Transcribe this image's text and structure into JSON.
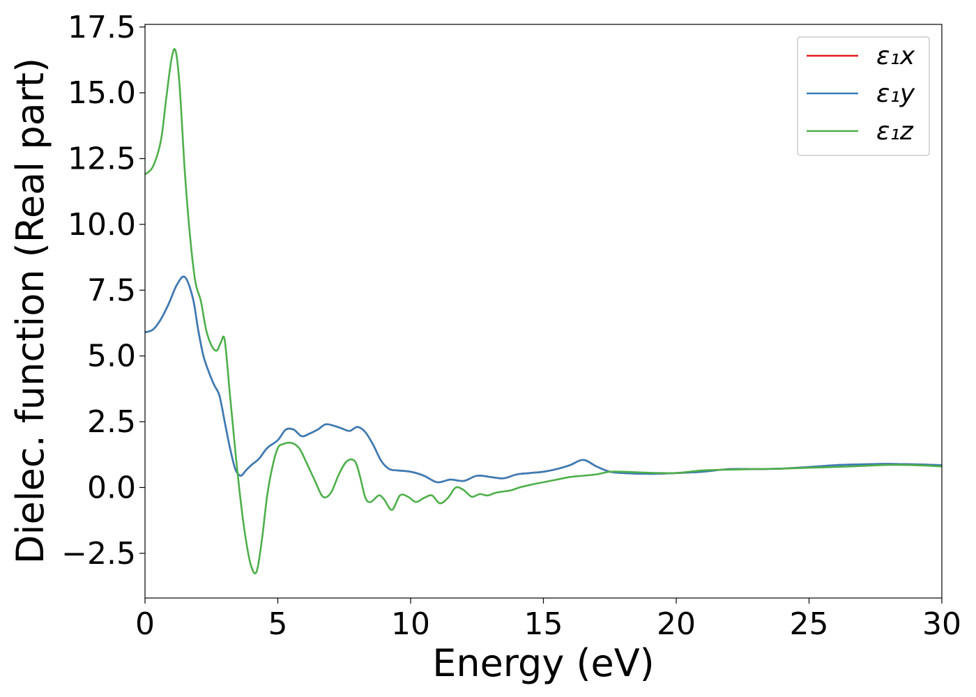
{
  "chart_data": {
    "type": "line",
    "title": "",
    "xlabel": "Energy (eV)",
    "ylabel": "Dielec. function (Real part)",
    "xlim": [
      0,
      30
    ],
    "ylim": [
      -4.2,
      17.6
    ],
    "xticks": [
      0,
      5,
      10,
      15,
      20,
      25,
      30
    ],
    "xtick_labels": [
      "0",
      "5",
      "10",
      "15",
      "20",
      "25",
      "30"
    ],
    "yticks": [
      -2.5,
      0.0,
      2.5,
      5.0,
      7.5,
      10.0,
      12.5,
      15.0,
      17.5
    ],
    "ytick_labels": [
      "−2.5",
      "0.0",
      "2.5",
      "5.0",
      "7.5",
      "10.0",
      "12.5",
      "15.0",
      "17.5"
    ],
    "grid": false,
    "legend_position": "top-right",
    "series": [
      {
        "name": "ε₁x",
        "color": "#e41a1c",
        "x": [
          0,
          0.3,
          0.6,
          0.9,
          1.2,
          1.5,
          1.8,
          2.0,
          2.2,
          2.4,
          2.6,
          2.8,
          3.0,
          3.2,
          3.4,
          3.6,
          3.8,
          4.0,
          4.3,
          4.6,
          5.0,
          5.3,
          5.6,
          5.9,
          6.2,
          6.5,
          6.8,
          7.1,
          7.4,
          7.7,
          8.0,
          8.3,
          8.6,
          8.9,
          9.2,
          9.5,
          10.0,
          10.5,
          11.0,
          11.5,
          12.0,
          12.5,
          13.0,
          13.5,
          14.0,
          14.5,
          15.0,
          15.5,
          16.0,
          16.5,
          17.0,
          17.5,
          18.0,
          19.0,
          20.0,
          21.0,
          22.0,
          23.0,
          24.0,
          25.0,
          26.0,
          27.0,
          28.0,
          29.0,
          30.0
        ],
        "values": [
          5.9,
          6.0,
          6.4,
          7.0,
          7.7,
          8.0,
          7.2,
          6.0,
          5.0,
          4.4,
          3.9,
          3.5,
          2.5,
          1.5,
          0.7,
          0.45,
          0.65,
          0.85,
          1.1,
          1.5,
          1.8,
          2.2,
          2.2,
          1.95,
          2.05,
          2.2,
          2.4,
          2.35,
          2.25,
          2.15,
          2.3,
          2.1,
          1.6,
          1.0,
          0.7,
          0.65,
          0.6,
          0.45,
          0.2,
          0.3,
          0.25,
          0.45,
          0.4,
          0.35,
          0.5,
          0.55,
          0.6,
          0.7,
          0.85,
          1.05,
          0.8,
          0.6,
          0.55,
          0.52,
          0.55,
          0.6,
          0.7,
          0.7,
          0.72,
          0.78,
          0.85,
          0.88,
          0.9,
          0.88,
          0.85
        ]
      },
      {
        "name": "ε₁y",
        "color": "#377eb8",
        "x": [
          0,
          0.3,
          0.6,
          0.9,
          1.2,
          1.5,
          1.8,
          2.0,
          2.2,
          2.4,
          2.6,
          2.8,
          3.0,
          3.2,
          3.4,
          3.6,
          3.8,
          4.0,
          4.3,
          4.6,
          5.0,
          5.3,
          5.6,
          5.9,
          6.2,
          6.5,
          6.8,
          7.1,
          7.4,
          7.7,
          8.0,
          8.3,
          8.6,
          8.9,
          9.2,
          9.5,
          10.0,
          10.5,
          11.0,
          11.5,
          12.0,
          12.5,
          13.0,
          13.5,
          14.0,
          14.5,
          15.0,
          15.5,
          16.0,
          16.5,
          17.0,
          17.5,
          18.0,
          19.0,
          20.0,
          21.0,
          22.0,
          23.0,
          24.0,
          25.0,
          26.0,
          27.0,
          28.0,
          29.0,
          30.0
        ],
        "values": [
          5.9,
          6.0,
          6.4,
          7.0,
          7.7,
          8.0,
          7.2,
          6.0,
          5.0,
          4.4,
          3.9,
          3.5,
          2.5,
          1.5,
          0.7,
          0.45,
          0.65,
          0.85,
          1.1,
          1.5,
          1.8,
          2.2,
          2.2,
          1.95,
          2.05,
          2.2,
          2.4,
          2.35,
          2.25,
          2.15,
          2.3,
          2.1,
          1.6,
          1.0,
          0.7,
          0.65,
          0.6,
          0.45,
          0.2,
          0.3,
          0.25,
          0.45,
          0.4,
          0.35,
          0.5,
          0.55,
          0.6,
          0.7,
          0.85,
          1.05,
          0.8,
          0.6,
          0.55,
          0.52,
          0.55,
          0.6,
          0.7,
          0.7,
          0.72,
          0.78,
          0.85,
          0.88,
          0.9,
          0.88,
          0.85
        ]
      },
      {
        "name": "ε₁z",
        "color": "#4daf4a",
        "x": [
          0,
          0.3,
          0.6,
          0.8,
          1.0,
          1.15,
          1.3,
          1.5,
          1.7,
          1.9,
          2.1,
          2.3,
          2.5,
          2.7,
          2.85,
          3.0,
          3.2,
          3.4,
          3.6,
          3.8,
          4.0,
          4.2,
          4.4,
          4.6,
          4.8,
          5.0,
          5.2,
          5.5,
          5.8,
          6.1,
          6.4,
          6.7,
          7.0,
          7.3,
          7.6,
          7.9,
          8.1,
          8.3,
          8.5,
          8.8,
          9.0,
          9.3,
          9.6,
          9.9,
          10.2,
          10.5,
          10.8,
          11.1,
          11.4,
          11.7,
          12.0,
          12.3,
          12.6,
          12.9,
          13.2,
          13.5,
          13.8,
          14.1,
          14.5,
          15.0,
          15.5,
          16.0,
          16.5,
          17.0,
          17.5,
          18.0,
          18.5,
          19.0,
          19.5,
          20.0,
          21.0,
          22.0,
          23.0,
          24.0,
          25.0,
          26.0,
          27.0,
          28.0,
          29.0,
          30.0
        ],
        "values": [
          11.9,
          12.2,
          13.2,
          14.8,
          16.3,
          16.6,
          15.3,
          12.0,
          9.5,
          7.8,
          7.1,
          6.0,
          5.4,
          5.2,
          5.5,
          5.6,
          3.5,
          1.4,
          -0.5,
          -2.0,
          -3.0,
          -3.2,
          -2.0,
          -0.3,
          0.8,
          1.5,
          1.65,
          1.7,
          1.5,
          0.9,
          0.25,
          -0.35,
          -0.2,
          0.5,
          1.0,
          1.0,
          0.4,
          -0.4,
          -0.55,
          -0.3,
          -0.45,
          -0.85,
          -0.3,
          -0.35,
          -0.55,
          -0.4,
          -0.3,
          -0.6,
          -0.4,
          0.0,
          -0.1,
          -0.35,
          -0.25,
          -0.3,
          -0.2,
          -0.15,
          -0.1,
          0.0,
          0.1,
          0.2,
          0.3,
          0.4,
          0.45,
          0.5,
          0.6,
          0.6,
          0.58,
          0.56,
          0.55,
          0.55,
          0.65,
          0.68,
          0.7,
          0.72,
          0.75,
          0.78,
          0.82,
          0.86,
          0.85,
          0.8
        ]
      }
    ]
  }
}
